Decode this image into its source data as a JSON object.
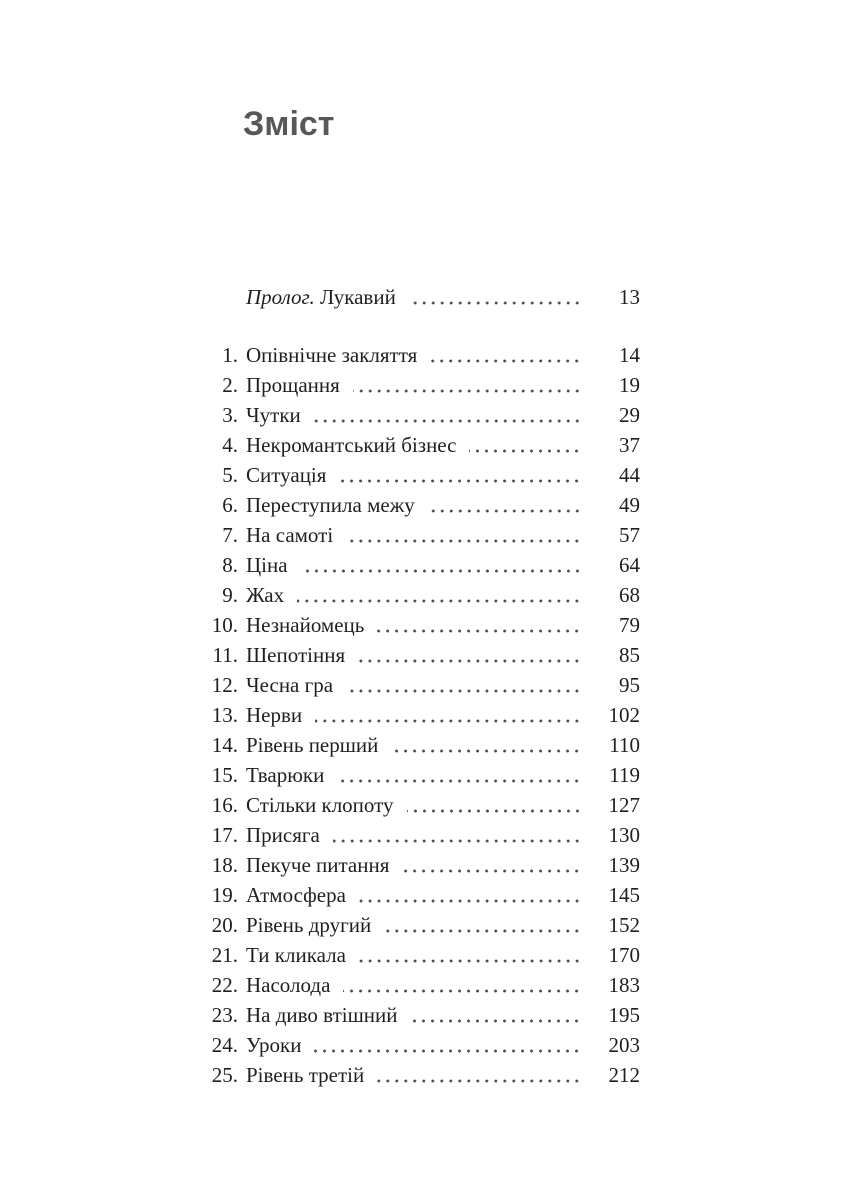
{
  "page": {
    "title": "Зміст"
  },
  "colors": {
    "title_gray": "#57585a",
    "body_text": "#1f1f1f",
    "leader_dots": "#4a4a4a",
    "background": "#ffffff"
  },
  "toc": {
    "prolog": {
      "label_italic": "Пролог.",
      "label_rest": " Лукавий",
      "page": "13"
    },
    "entries": [
      {
        "num": "1.",
        "title": "Опівнічне закляття",
        "page": "14"
      },
      {
        "num": "2.",
        "title": "Прощання",
        "page": "19"
      },
      {
        "num": "3.",
        "title": "Чутки",
        "page": "29"
      },
      {
        "num": "4.",
        "title": "Некромантський бізнес",
        "page": "37"
      },
      {
        "num": "5.",
        "title": "Ситуація",
        "page": "44"
      },
      {
        "num": "6.",
        "title": "Переступила межу",
        "page": "49"
      },
      {
        "num": "7.",
        "title": "На самоті",
        "page": "57"
      },
      {
        "num": "8.",
        "title": "Ціна",
        "page": "64"
      },
      {
        "num": "9.",
        "title": "Жах",
        "page": "68"
      },
      {
        "num": "10.",
        "title": "Незнайомець",
        "page": "79"
      },
      {
        "num": "11.",
        "title": "Шепотіння",
        "page": "85"
      },
      {
        "num": "12.",
        "title": "Чесна гра",
        "page": "95"
      },
      {
        "num": "13.",
        "title": "Нерви",
        "page": "102"
      },
      {
        "num": "14.",
        "title": "Рівень перший",
        "page": "110"
      },
      {
        "num": "15.",
        "title": "Тварюки",
        "page": "119"
      },
      {
        "num": "16.",
        "title": "Стільки клопоту",
        "page": "127"
      },
      {
        "num": "17.",
        "title": "Присяга",
        "page": "130"
      },
      {
        "num": "18.",
        "title": "Пекуче питання",
        "page": "139"
      },
      {
        "num": "19.",
        "title": "Атмосфера",
        "page": "145"
      },
      {
        "num": "20.",
        "title": "Рівень другий",
        "page": "152"
      },
      {
        "num": "21.",
        "title": "Ти кликала",
        "page": "170"
      },
      {
        "num": "22.",
        "title": "Насолода",
        "page": "183"
      },
      {
        "num": "23.",
        "title": "На диво втішний",
        "page": "195"
      },
      {
        "num": "24.",
        "title": "Уроки",
        "page": "203"
      },
      {
        "num": "25.",
        "title": "Рівень третій",
        "page": "212"
      }
    ]
  }
}
